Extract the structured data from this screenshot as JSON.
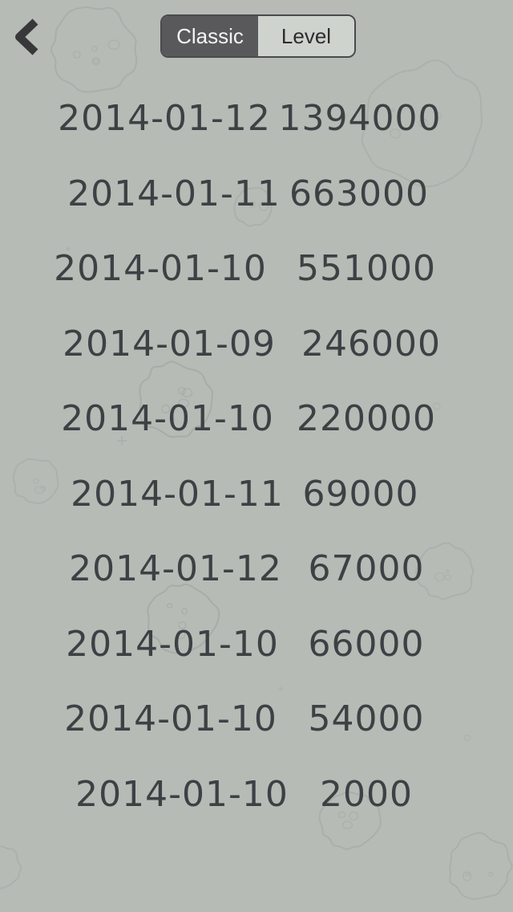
{
  "header": {
    "back_icon": "chevron-left-icon",
    "tabs": [
      {
        "label": "Classic",
        "selected": true
      },
      {
        "label": "Level",
        "selected": false
      }
    ]
  },
  "scores": {
    "rows": [
      {
        "date": "2014-01-12",
        "score": "1394000"
      },
      {
        "date": "2014-01-11",
        "score": "663000"
      },
      {
        "date": "2014-01-10",
        "score": "551000"
      },
      {
        "date": "2014-01-09",
        "score": "246000"
      },
      {
        "date": "2014-01-10",
        "score": "220000"
      },
      {
        "date": "2014-01-11",
        "score": "69000"
      },
      {
        "date": "2014-01-12",
        "score": "67000"
      },
      {
        "date": "2014-01-10",
        "score": "66000"
      },
      {
        "date": "2014-01-10",
        "score": "54000"
      },
      {
        "date": "2014-01-10",
        "score": "2000"
      }
    ]
  },
  "decor": {
    "doodle_icon": "asteroid-doodle",
    "doodle_count": 10
  },
  "colors": {
    "background": "#b6bbb6",
    "ink": "#3d4144",
    "doodle_stroke": "#a0a7a1",
    "tab_selected_bg": "#59595b",
    "tab_selected_text": "#f4f4f4",
    "tab_unselected_bg": "#ced3ce",
    "tab_unselected_text": "#2c2c2e",
    "control_border": "#4a4a4c",
    "back_chevron": "#38383a"
  }
}
